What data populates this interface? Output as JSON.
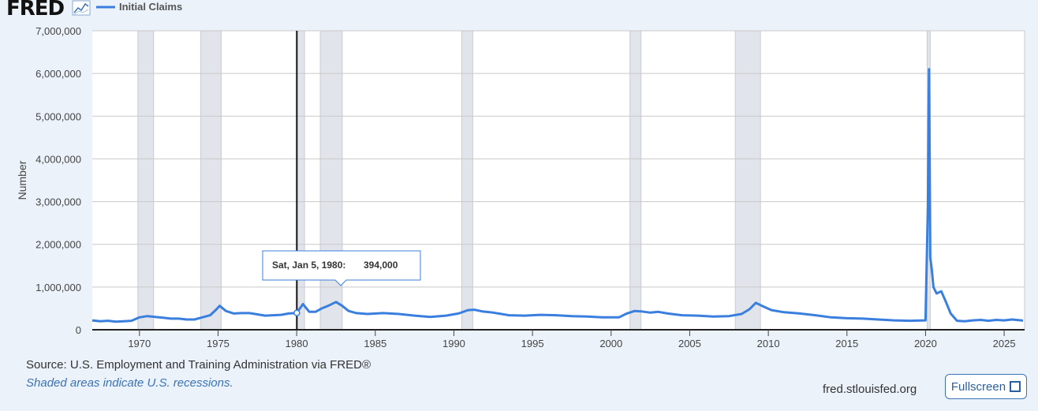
{
  "logo": {
    "text": "FRED"
  },
  "legend": {
    "series_name": "Initial Claims"
  },
  "colors": {
    "series": "#3a7fde",
    "recession": "#e1e4ea",
    "background": "#ebf2fa",
    "plot": "#ffffff",
    "link": "#3a73b5"
  },
  "tooltip": {
    "date": "Sat, Jan 5, 1980:",
    "value": "394,000"
  },
  "footer": {
    "source": "Source: U.S. Employment and Training Administration via FRED®",
    "note": "Shaded areas indicate U.S. recessions.",
    "site": "fred.stlouisfed.org",
    "fullscreen_label": "Fullscreen"
  },
  "chart_data": {
    "type": "line",
    "title": "",
    "xlabel": "",
    "ylabel": "Number",
    "xlim": [
      1967.0,
      2026.3
    ],
    "ylim": [
      0,
      7000000
    ],
    "y_ticks": [
      0,
      1000000,
      2000000,
      3000000,
      4000000,
      5000000,
      6000000,
      7000000
    ],
    "y_tick_labels": [
      "0",
      "1,000,000",
      "2,000,000",
      "3,000,000",
      "4,000,000",
      "5,000,000",
      "6,000,000",
      "7,000,000"
    ],
    "x_ticks": [
      1970,
      1975,
      1980,
      1985,
      1990,
      1995,
      2000,
      2005,
      2010,
      2015,
      2020,
      2025
    ],
    "x_tick_labels": [
      "1970",
      "1975",
      "1980",
      "1985",
      "1990",
      "1995",
      "2000",
      "2005",
      "2010",
      "2015",
      "2020",
      "2025"
    ],
    "grid": true,
    "legend_position": "top-left",
    "recessions": [
      [
        1969.9,
        1970.9
      ],
      [
        1973.9,
        1975.2
      ],
      [
        1980.0,
        1980.5
      ],
      [
        1981.5,
        1982.9
      ],
      [
        1990.5,
        1991.2
      ],
      [
        2001.2,
        2001.9
      ],
      [
        2007.9,
        2009.5
      ],
      [
        2020.1,
        2020.3
      ]
    ],
    "highlight": {
      "x": 1980.01,
      "y": 394000
    },
    "series": [
      {
        "name": "Initial Claims",
        "x": [
          1967.0,
          1967.5,
          1968.0,
          1968.5,
          1969.0,
          1969.5,
          1970.0,
          1970.5,
          1971.0,
          1971.5,
          1972.0,
          1972.5,
          1973.0,
          1973.5,
          1974.0,
          1974.5,
          1974.9,
          1975.1,
          1975.5,
          1976.0,
          1976.5,
          1977.0,
          1977.5,
          1978.0,
          1978.5,
          1979.0,
          1979.5,
          1980.0,
          1980.4,
          1980.8,
          1981.2,
          1981.6,
          1982.0,
          1982.5,
          1982.9,
          1983.3,
          1983.8,
          1984.5,
          1985.5,
          1986.5,
          1987.5,
          1988.5,
          1989.5,
          1990.3,
          1990.9,
          1991.3,
          1991.8,
          1992.5,
          1993.5,
          1994.5,
          1995.5,
          1996.5,
          1997.5,
          1998.5,
          1999.5,
          2000.5,
          2001.0,
          2001.5,
          2001.9,
          2002.5,
          2003.0,
          2003.6,
          2004.5,
          2005.5,
          2006.5,
          2007.5,
          2008.3,
          2008.8,
          2009.2,
          2009.6,
          2010.2,
          2011.0,
          2012.0,
          2013.0,
          2014.0,
          2015.0,
          2016.0,
          2017.0,
          2018.0,
          2019.0,
          2020.0,
          2020.15,
          2020.22,
          2020.26,
          2020.3,
          2020.4,
          2020.5,
          2020.7,
          2021.0,
          2021.3,
          2021.6,
          2022.0,
          2022.5,
          2023.0,
          2023.5,
          2024.0,
          2024.5,
          2025.0,
          2025.5,
          2026.2
        ],
        "values": [
          220000,
          200000,
          210000,
          190000,
          200000,
          210000,
          290000,
          320000,
          300000,
          280000,
          260000,
          260000,
          240000,
          240000,
          290000,
          340000,
          480000,
          560000,
          440000,
          380000,
          390000,
          390000,
          360000,
          330000,
          340000,
          350000,
          380000,
          394000,
          600000,
          420000,
          420000,
          500000,
          560000,
          650000,
          560000,
          440000,
          390000,
          370000,
          390000,
          370000,
          330000,
          300000,
          330000,
          380000,
          460000,
          470000,
          430000,
          400000,
          340000,
          330000,
          350000,
          340000,
          320000,
          310000,
          290000,
          290000,
          380000,
          440000,
          430000,
          400000,
          420000,
          380000,
          340000,
          330000,
          310000,
          320000,
          370000,
          480000,
          630000,
          560000,
          460000,
          410000,
          380000,
          340000,
          290000,
          270000,
          260000,
          240000,
          220000,
          210000,
          220000,
          2900000,
          6100000,
          4200000,
          1700000,
          1400000,
          1000000,
          850000,
          900000,
          650000,
          380000,
          210000,
          200000,
          220000,
          230000,
          210000,
          230000,
          220000,
          240000,
          215000
        ]
      }
    ]
  }
}
